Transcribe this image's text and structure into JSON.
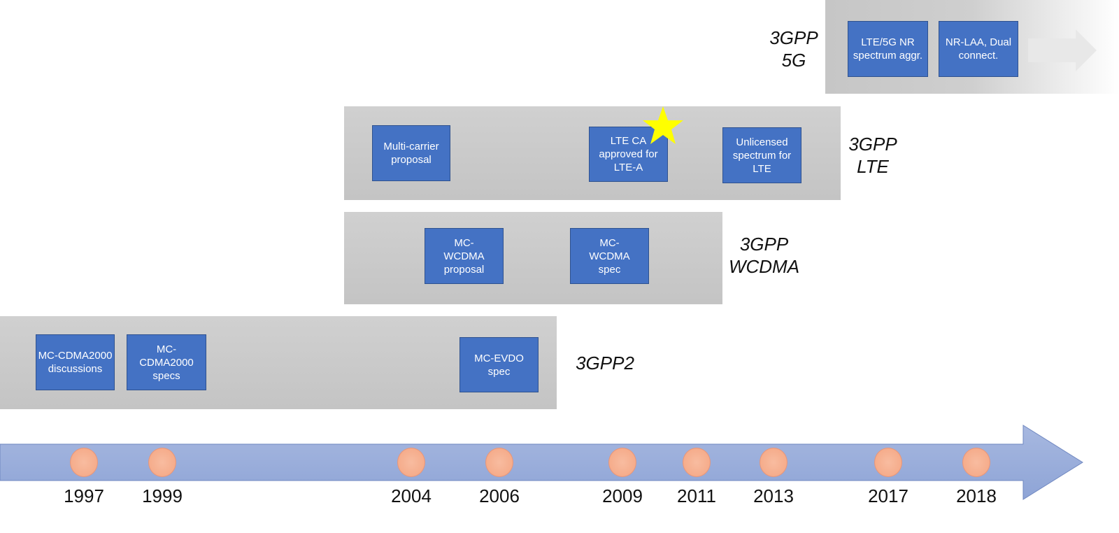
{
  "groups": {
    "g5": {
      "label1": "3GPP",
      "label2": "5G",
      "boxes": [
        "LTE/5G NR spectrum aggr.",
        "NR-LAA, Dual connect."
      ]
    },
    "lte": {
      "label1": "3GPP",
      "label2": "LTE",
      "boxes": [
        "Multi-carrier proposal",
        "LTE CA approved for LTE-A",
        "Unlicensed spectrum for LTE"
      ]
    },
    "wcdma": {
      "label1": "3GPP",
      "label2": "WCDMA",
      "boxes": [
        "MC-WCDMA proposal",
        "MC-WCDMA spec"
      ]
    },
    "gpp2": {
      "label1": "3GPP2",
      "boxes": [
        "MC-CDMA2000 discussions",
        "MC-CDMA2000 specs",
        "MC-EVDO spec"
      ]
    }
  },
  "timeline": {
    "years": [
      "1997",
      "1999",
      "2004",
      "2006",
      "2009",
      "2011",
      "2013",
      "2017",
      "2018"
    ]
  },
  "colors": {
    "box": "#4472c4",
    "band": "#c8c8c8",
    "arrow": "#9aaddb",
    "dot": "#f4a582",
    "star": "#ffff00"
  }
}
